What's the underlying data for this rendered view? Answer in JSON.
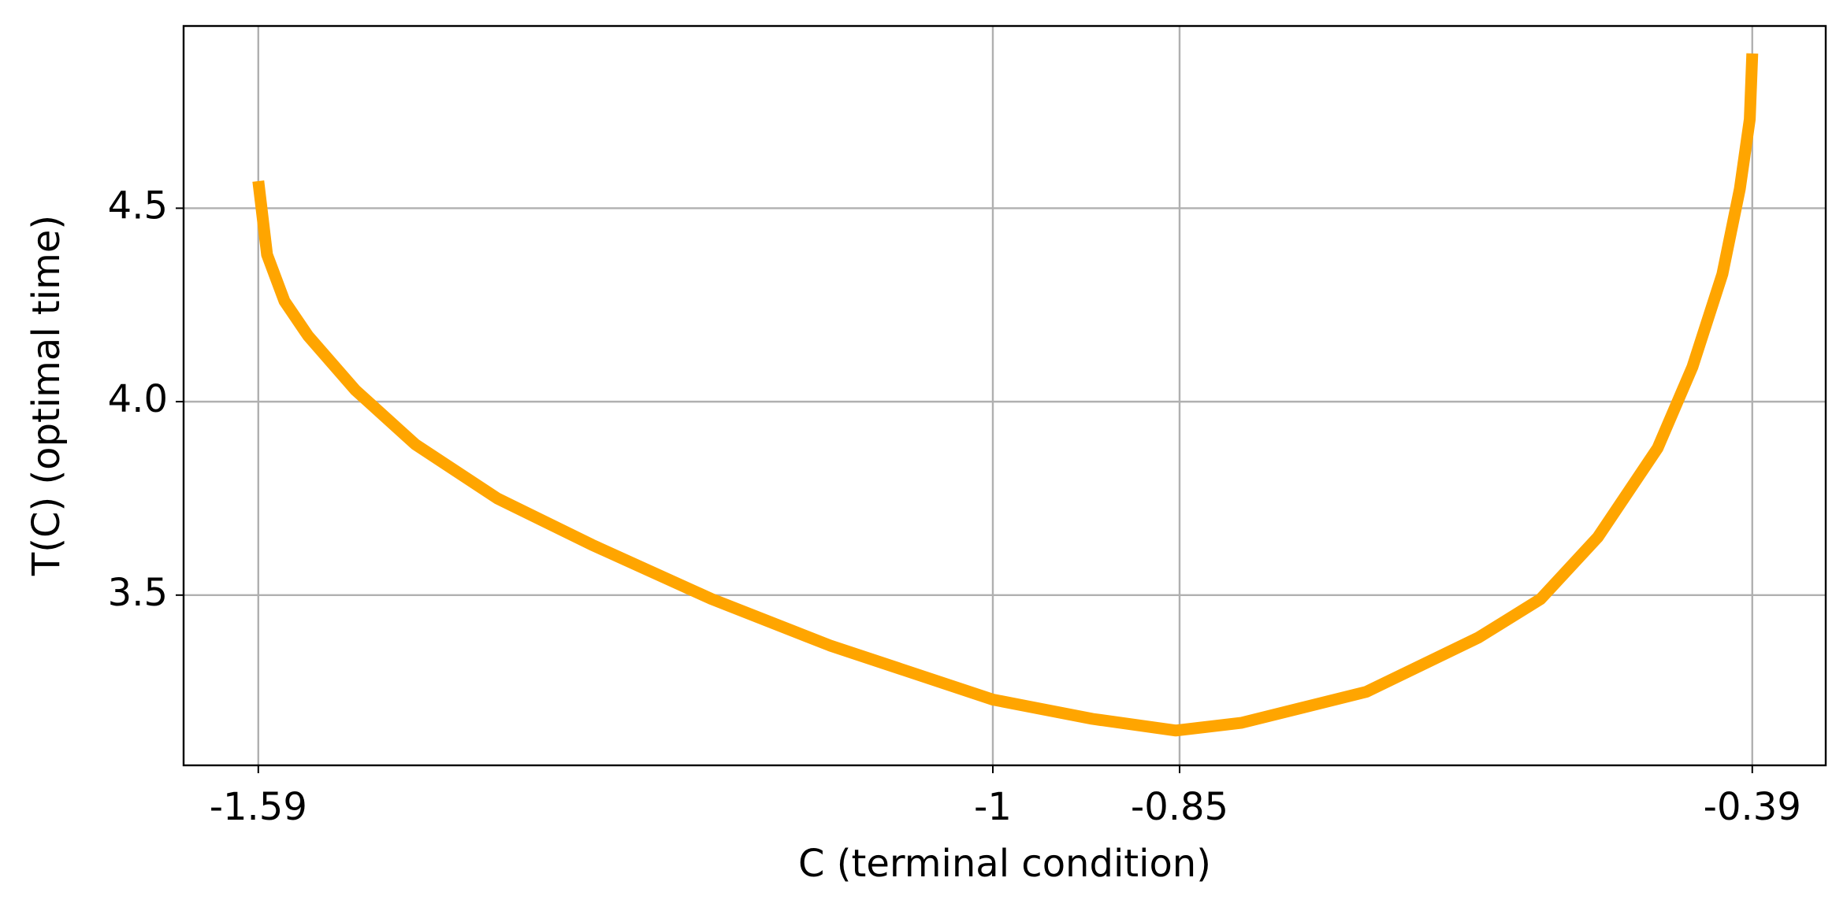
{
  "chart_data": {
    "type": "line",
    "xlabel": "C (terminal condition)",
    "ylabel": "T(C)  (optimal time)",
    "x": [
      -1.59,
      -1.583,
      -1.569,
      -1.55,
      -1.512,
      -1.464,
      -1.398,
      -1.322,
      -1.226,
      -1.131,
      -1.0,
      -0.92,
      -0.853,
      -0.8,
      -0.7,
      -0.61,
      -0.56,
      -0.514,
      -0.466,
      -0.438,
      -0.414,
      -0.4,
      -0.392,
      -0.39
    ],
    "series": [
      {
        "color": "#ffa500",
        "values": [
          4.57,
          4.38,
          4.26,
          4.17,
          4.03,
          3.89,
          3.75,
          3.63,
          3.49,
          3.37,
          3.23,
          3.18,
          3.15,
          3.17,
          3.25,
          3.39,
          3.49,
          3.65,
          3.88,
          4.09,
          4.33,
          4.55,
          4.73,
          4.9
        ]
      }
    ],
    "xlim": [
      -1.65,
      -0.331
    ],
    "ylim": [
      3.06,
      4.971
    ],
    "xticks": [
      -1.59,
      -1,
      -0.85,
      -0.39
    ],
    "yticks": [
      3.5,
      {
        "value": 4,
        "label": "4.0"
      },
      4.5
    ],
    "grid": true
  }
}
